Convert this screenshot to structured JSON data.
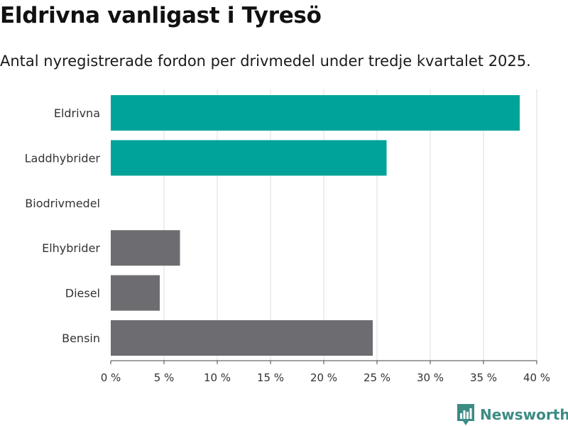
{
  "title": "Eldrivna vanligast i Tyresö",
  "subtitle": "Antal nyregistrerade fordon per drivmedel under tredje kvartalet 2025.",
  "brand": {
    "name": "Newsworthy",
    "logo_icon": "newsworthy-chart-logo-icon",
    "color": "#3c8c84"
  },
  "chart_data": {
    "type": "bar",
    "orientation": "horizontal",
    "categories": [
      "Eldrivna",
      "Laddhybrider",
      "Biodrivmedel",
      "Elhybrider",
      "Diesel",
      "Bensin"
    ],
    "values": [
      38.4,
      25.9,
      0,
      6.5,
      4.6,
      24.6
    ],
    "bar_colors": [
      "#00a39a",
      "#00a39a",
      "#6d6c70",
      "#6d6c70",
      "#6d6c70",
      "#6d6c70"
    ],
    "xlim": [
      0,
      40
    ],
    "x_ticks": [
      0,
      5,
      10,
      15,
      20,
      25,
      30,
      35,
      40
    ],
    "x_tick_labels": [
      "0 %",
      "5 %",
      "10 %",
      "15 %",
      "20 %",
      "25 %",
      "30 %",
      "35 %",
      "40 %"
    ],
    "grid": true,
    "xlabel": "",
    "ylabel": ""
  }
}
